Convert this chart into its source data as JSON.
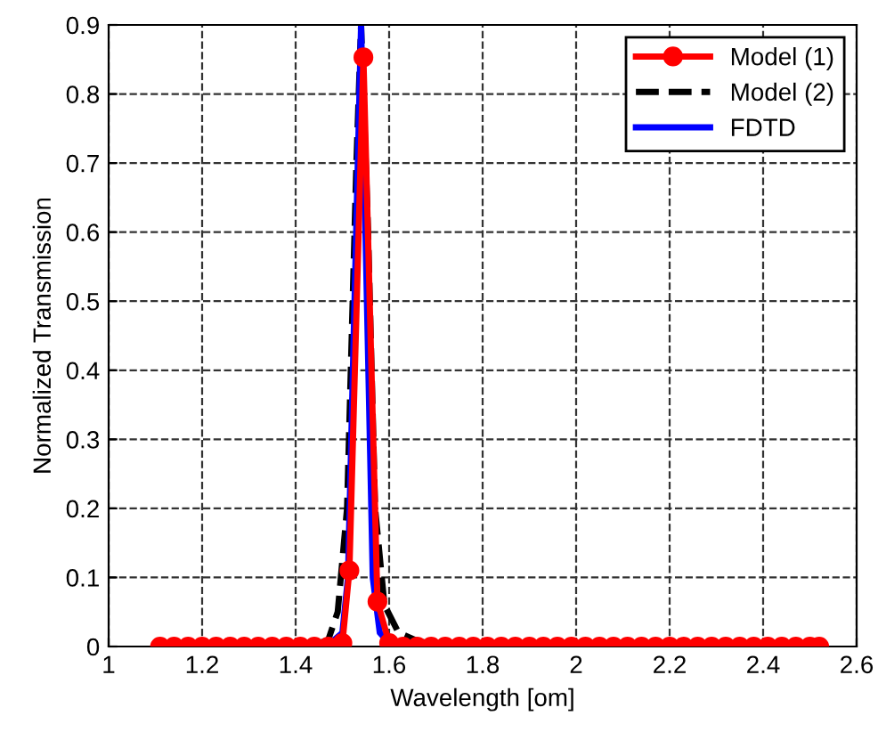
{
  "chart_data": {
    "type": "line",
    "xlabel": "Wavelength [om]",
    "ylabel": "Normalized Transmission",
    "xlim": [
      1,
      2.6
    ],
    "xticks": [
      1,
      1.2,
      1.4,
      1.6,
      1.8,
      2,
      2.2,
      2.4,
      2.6
    ],
    "ylim": [
      0,
      0.9
    ],
    "yticks": [
      0,
      0.1,
      0.2,
      0.3,
      0.4,
      0.5,
      0.6,
      0.7,
      0.8,
      0.9
    ],
    "grid": true,
    "legend": "top right",
    "series": [
      {
        "name": "Model (1)",
        "color": "#ff0000",
        "marker": "circle",
        "line_style": "solid",
        "x": [
          1.11,
          1.14,
          1.17,
          1.2,
          1.23,
          1.26,
          1.29,
          1.32,
          1.35,
          1.38,
          1.41,
          1.44,
          1.47,
          1.5,
          1.515,
          1.545,
          1.575,
          1.6,
          1.63,
          1.66,
          1.69,
          1.72,
          1.75,
          1.78,
          1.81,
          1.84,
          1.87,
          1.9,
          1.93,
          1.96,
          1.99,
          2.02,
          2.05,
          2.08,
          2.11,
          2.14,
          2.17,
          2.2,
          2.23,
          2.26,
          2.29,
          2.32,
          2.35,
          2.38,
          2.41,
          2.44,
          2.47,
          2.5,
          2.52
        ],
        "values": [
          0,
          0,
          0,
          0,
          0,
          0,
          0,
          0,
          0,
          0,
          0,
          0,
          0,
          0.005,
          0.11,
          0.853,
          0.065,
          0.005,
          0,
          0,
          0,
          0,
          0,
          0,
          0,
          0,
          0,
          0,
          0,
          0,
          0,
          0,
          0,
          0,
          0,
          0,
          0,
          0,
          0,
          0,
          0,
          0,
          0,
          0,
          0,
          0,
          0,
          0,
          0
        ]
      },
      {
        "name": "Model (2)",
        "color": "#000000",
        "marker": "none",
        "line_style": "dashed",
        "x": [
          1.1,
          1.44,
          1.47,
          1.49,
          1.51,
          1.53,
          1.54,
          1.555,
          1.57,
          1.59,
          1.62,
          1.66,
          1.7,
          2.0,
          2.52
        ],
        "values": [
          0,
          0.002,
          0.01,
          0.05,
          0.2,
          0.7,
          0.9,
          0.6,
          0.2,
          0.06,
          0.02,
          0.008,
          0.003,
          0.001,
          0
        ]
      },
      {
        "name": "FDTD",
        "color": "#0000ff",
        "marker": "none",
        "line_style": "solid",
        "x": [
          1.11,
          1.47,
          1.5,
          1.512,
          1.54,
          1.565,
          1.58,
          1.6,
          2.52
        ],
        "values": [
          0,
          0.002,
          0.02,
          0.1,
          0.9,
          0.1,
          0.02,
          0.005,
          0
        ]
      }
    ]
  }
}
